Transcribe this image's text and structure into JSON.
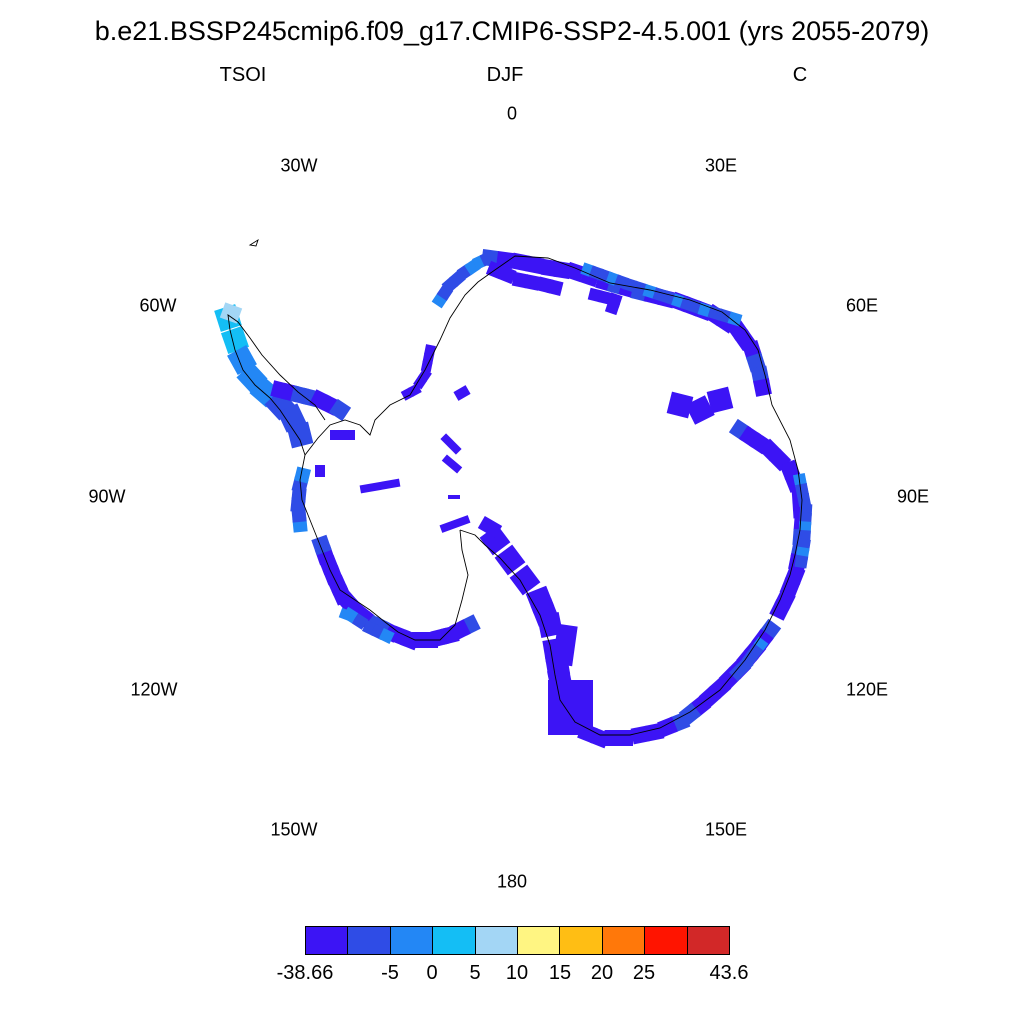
{
  "header": {
    "title": "b.e21.BSSP245cmip6.f09_g17.CMIP6-SSP2-4.5.001 (yrs 2055-2079)",
    "variable": "TSOI",
    "season": "DJF",
    "units": "C"
  },
  "map": {
    "projection": "south-polar-stereographic",
    "longitude_labels": [
      "0",
      "30E",
      "60E",
      "90E",
      "120E",
      "150E",
      "180",
      "150W",
      "120W",
      "90W",
      "60W",
      "30W"
    ],
    "field_class_main": "-38.66 to -5",
    "field_class_edge": "-5 to 0",
    "field_class_peninsula": "0 to 5"
  },
  "colorbar": {
    "colors": [
      "#3c14f5",
      "#2f4ce6",
      "#2387f5",
      "#14bef5",
      "#a3d6f5",
      "#fff582",
      "#ffbe14",
      "#ff780a",
      "#ff1400",
      "#d22828"
    ],
    "labels": [
      "-38.66",
      "-5",
      "0",
      "5",
      "10",
      "15",
      "20",
      "25",
      "43.6"
    ]
  }
}
